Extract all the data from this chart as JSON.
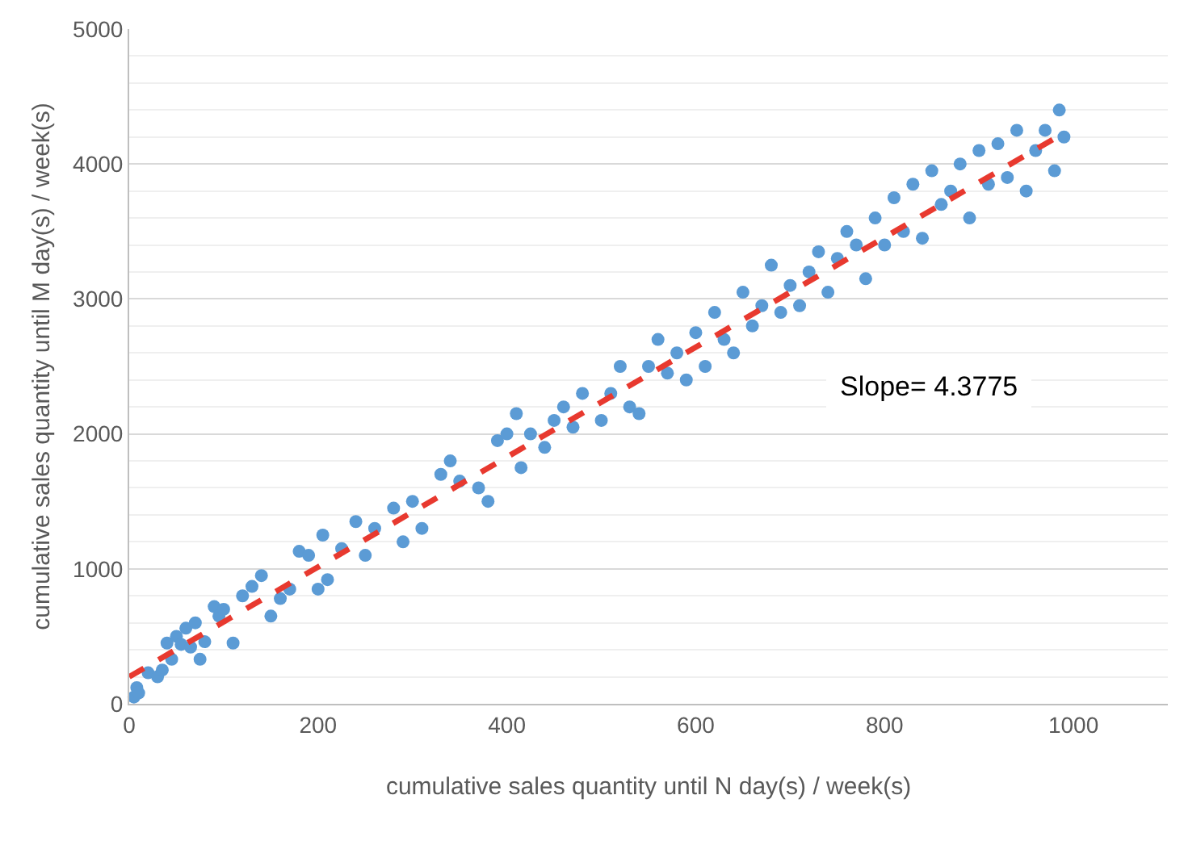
{
  "chart_data": {
    "type": "scatter",
    "xlabel": "cumulative sales quantity until N day(s) / week(s)",
    "ylabel": "cumulative sales quantity until M day(s) / week(s)",
    "xlim": [
      0,
      1100
    ],
    "xticks": [
      0,
      200,
      400,
      600,
      800,
      1000
    ],
    "ylim": [
      0,
      5000
    ],
    "yticks": [
      0,
      1000,
      2000,
      3000,
      4000,
      5000
    ],
    "grid": "y",
    "annotations": [
      "Slope= 4.3775"
    ],
    "series": [
      {
        "color": "#5b9bd5",
        "marker": "circle",
        "x": [
          5,
          8,
          10,
          20,
          30,
          35,
          40,
          45,
          50,
          55,
          60,
          65,
          70,
          75,
          80,
          90,
          95,
          100,
          110,
          120,
          130,
          140,
          150,
          160,
          170,
          180,
          190,
          200,
          205,
          210,
          225,
          240,
          250,
          260,
          280,
          290,
          300,
          310,
          330,
          340,
          350,
          370,
          380,
          390,
          400,
          410,
          415,
          425,
          440,
          450,
          460,
          470,
          480,
          500,
          510,
          520,
          530,
          540,
          550,
          560,
          570,
          580,
          590,
          600,
          610,
          620,
          630,
          640,
          650,
          660,
          670,
          680,
          690,
          700,
          710,
          720,
          730,
          740,
          750,
          760,
          770,
          780,
          790,
          800,
          810,
          820,
          830,
          840,
          850,
          860,
          870,
          880,
          890,
          900,
          910,
          920,
          930,
          940,
          950,
          960,
          970,
          980,
          985,
          990
        ],
        "values": [
          50,
          120,
          80,
          230,
          200,
          250,
          450,
          330,
          500,
          440,
          560,
          420,
          600,
          330,
          460,
          720,
          650,
          700,
          450,
          800,
          870,
          950,
          650,
          780,
          850,
          1130,
          1100,
          850,
          1250,
          920,
          1150,
          1350,
          1100,
          1300,
          1450,
          1200,
          1500,
          1300,
          1700,
          1800,
          1650,
          1600,
          1500,
          1950,
          2000,
          2150,
          1750,
          2000,
          1900,
          2100,
          2200,
          2050,
          2300,
          2100,
          2300,
          2500,
          2200,
          2150,
          2500,
          2700,
          2450,
          2600,
          2400,
          2750,
          2500,
          2900,
          2700,
          2600,
          3050,
          2800,
          2950,
          3250,
          2900,
          3100,
          2950,
          3200,
          3350,
          3050,
          3300,
          3500,
          3400,
          3150,
          3600,
          3400,
          3750,
          3500,
          3850,
          3450,
          3950,
          3700,
          3800,
          4000,
          3600,
          4100,
          3850,
          4150,
          3900,
          4250,
          3800,
          4100,
          4250,
          3950,
          4400,
          4200
        ]
      },
      {
        "type": "line",
        "color": "#e8392f",
        "line_style": "dashed",
        "x": [
          0,
          990
        ],
        "values": [
          200,
          4230
        ]
      }
    ]
  }
}
